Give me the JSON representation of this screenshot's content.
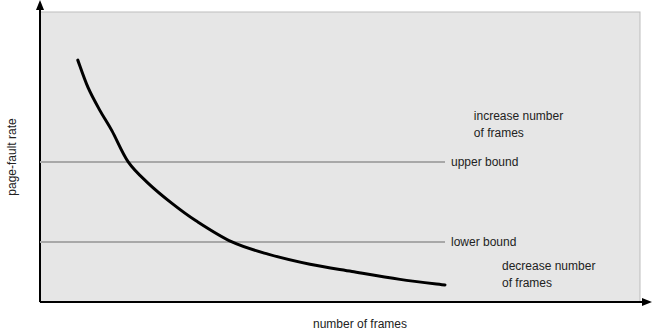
{
  "chart_data": {
    "type": "line",
    "x_label": "number of frames",
    "y_label": "page-fault rate",
    "xlim": [
      0,
      100
    ],
    "ylim": [
      0,
      100
    ],
    "tick_labels": false,
    "grid": false,
    "color": "#000000",
    "x": [
      6.3,
      8,
      10,
      12,
      14.7,
      18,
      22,
      26,
      32,
      38,
      45,
      52,
      60,
      67.5
    ],
    "values": [
      83.4,
      74,
      66,
      59,
      48.3,
      41,
      34,
      28,
      20.7,
      16.5,
      13,
      10.5,
      7.8,
      5.9
    ],
    "reference_lines": [
      {
        "label": "upper bound",
        "y": 48.3,
        "color": "#a8a8a8"
      },
      {
        "label": "lower bound",
        "y": 20.7,
        "color": "#a8a8a8"
      }
    ],
    "annotations": [
      {
        "text": [
          "increase number",
          "of frames"
        ],
        "x": 72.3,
        "y": 62.8
      },
      {
        "text": [
          "decrease number",
          "of frames"
        ],
        "x": 77,
        "y": 11
      }
    ]
  }
}
